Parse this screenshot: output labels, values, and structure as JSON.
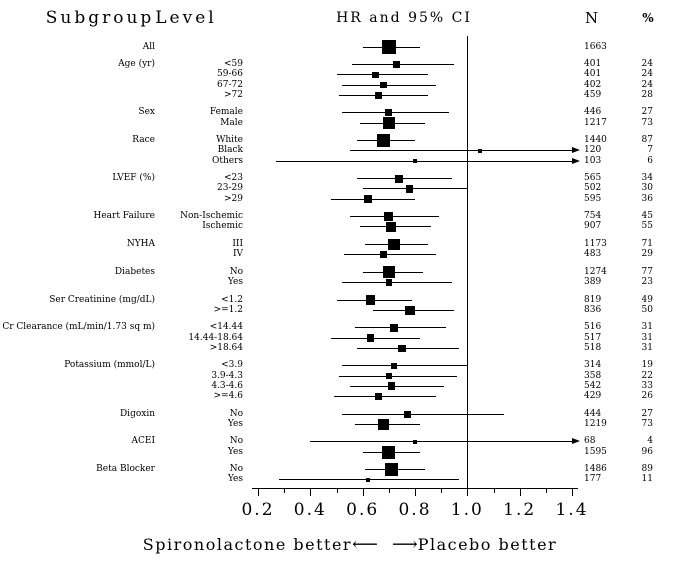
{
  "header": {
    "subgroup": "Subgroup",
    "level": "Level",
    "hr_ci": "HR and 95% CI",
    "n": "N",
    "pct": "%"
  },
  "footer": {
    "left_label": "Spironolactone better",
    "left_arrow": "⟵",
    "right_arrow": "⟶",
    "right_label": "Placebo better"
  },
  "chart_data": {
    "type": "forest",
    "title": "HR and 95% CI",
    "xlabel_left": "Spironolactone better",
    "xlabel_right": "Placebo better",
    "axis": {
      "min": 0.2,
      "max": 1.4,
      "ticks": [
        "0.2",
        "0.4",
        "0.6",
        "0.8",
        "1.0",
        "1.2",
        "1.4"
      ],
      "minor_step": 0.1,
      "ref_line": 1.0
    },
    "groups": [
      {
        "subgroup": "All",
        "rows": [
          {
            "level": "",
            "hr": 0.7,
            "lo": 0.6,
            "hi": 0.82,
            "n": 1663,
            "pct": ""
          }
        ]
      },
      {
        "subgroup": "Age (yr)",
        "rows": [
          {
            "level": "<59",
            "hr": 0.73,
            "lo": 0.56,
            "hi": 0.95,
            "n": 401,
            "pct": 24
          },
          {
            "level": "59-66",
            "hr": 0.65,
            "lo": 0.5,
            "hi": 0.85,
            "n": 401,
            "pct": 24
          },
          {
            "level": "67-72",
            "hr": 0.68,
            "lo": 0.52,
            "hi": 0.88,
            "n": 402,
            "pct": 24
          },
          {
            "level": ">72",
            "hr": 0.66,
            "lo": 0.51,
            "hi": 0.85,
            "n": 459,
            "pct": 28
          }
        ]
      },
      {
        "subgroup": "Sex",
        "rows": [
          {
            "level": "Female",
            "hr": 0.7,
            "lo": 0.52,
            "hi": 0.93,
            "n": 446,
            "pct": 27
          },
          {
            "level": "Male",
            "hr": 0.7,
            "lo": 0.59,
            "hi": 0.84,
            "n": 1217,
            "pct": 73
          }
        ]
      },
      {
        "subgroup": "Race",
        "rows": [
          {
            "level": "White",
            "hr": 0.68,
            "lo": 0.58,
            "hi": 0.8,
            "n": 1440,
            "pct": 87
          },
          {
            "level": "Black",
            "hr": 1.05,
            "lo": 0.55,
            "hi": 1.42,
            "arrow": true,
            "n": 120,
            "pct": 7
          },
          {
            "level": "Others",
            "hr": 0.8,
            "lo": 0.27,
            "hi": 1.42,
            "arrow": true,
            "n": 103,
            "pct": 6
          }
        ]
      },
      {
        "subgroup": "LVEF (%)",
        "rows": [
          {
            "level": "<23",
            "hr": 0.74,
            "lo": 0.58,
            "hi": 0.94,
            "n": 565,
            "pct": 34
          },
          {
            "level": "23-29",
            "hr": 0.78,
            "lo": 0.6,
            "hi": 1.0,
            "n": 502,
            "pct": 30
          },
          {
            "level": ">29",
            "hr": 0.62,
            "lo": 0.48,
            "hi": 0.8,
            "n": 595,
            "pct": 36
          }
        ]
      },
      {
        "subgroup": "Heart Failure",
        "rows": [
          {
            "level": "Non-Ischemic",
            "hr": 0.7,
            "lo": 0.55,
            "hi": 0.89,
            "n": 754,
            "pct": 45
          },
          {
            "level": "Ischemic",
            "hr": 0.71,
            "lo": 0.59,
            "hi": 0.86,
            "n": 907,
            "pct": 55
          }
        ]
      },
      {
        "subgroup": "NYHA",
        "rows": [
          {
            "level": "III",
            "hr": 0.72,
            "lo": 0.61,
            "hi": 0.85,
            "n": 1173,
            "pct": 71
          },
          {
            "level": "IV",
            "hr": 0.68,
            "lo": 0.53,
            "hi": 0.88,
            "n": 483,
            "pct": 29
          }
        ]
      },
      {
        "subgroup": "Diabetes",
        "rows": [
          {
            "level": "No",
            "hr": 0.7,
            "lo": 0.6,
            "hi": 0.83,
            "n": 1274,
            "pct": 77
          },
          {
            "level": "Yes",
            "hr": 0.7,
            "lo": 0.52,
            "hi": 0.94,
            "n": 389,
            "pct": 23
          }
        ]
      },
      {
        "subgroup": "Ser Creatinine (mg/dL)",
        "rows": [
          {
            "level": "<1.2",
            "hr": 0.63,
            "lo": 0.5,
            "hi": 0.79,
            "n": 819,
            "pct": 49
          },
          {
            "level": ">=1.2",
            "hr": 0.78,
            "lo": 0.64,
            "hi": 0.95,
            "n": 836,
            "pct": 50
          }
        ]
      },
      {
        "subgroup": "Cr Clearance (mL/min/1.73 sq m)",
        "rows": [
          {
            "level": "<14.44",
            "hr": 0.72,
            "lo": 0.57,
            "hi": 0.92,
            "n": 516,
            "pct": 31
          },
          {
            "level": "14.44-18.64",
            "hr": 0.63,
            "lo": 0.48,
            "hi": 0.82,
            "n": 517,
            "pct": 31
          },
          {
            "level": ">18.64",
            "hr": 0.75,
            "lo": 0.58,
            "hi": 0.97,
            "n": 518,
            "pct": 31
          }
        ]
      },
      {
        "subgroup": "Potassium (mmol/L)",
        "rows": [
          {
            "level": "<3.9",
            "hr": 0.72,
            "lo": 0.52,
            "hi": 1.0,
            "n": 314,
            "pct": 19
          },
          {
            "level": "3.9-4.3",
            "hr": 0.7,
            "lo": 0.51,
            "hi": 0.96,
            "n": 358,
            "pct": 22
          },
          {
            "level": "4.3-4.6",
            "hr": 0.71,
            "lo": 0.55,
            "hi": 0.91,
            "n": 542,
            "pct": 33
          },
          {
            "level": ">=4.6",
            "hr": 0.66,
            "lo": 0.49,
            "hi": 0.88,
            "n": 429,
            "pct": 26
          }
        ]
      },
      {
        "subgroup": "Digoxin",
        "rows": [
          {
            "level": "No",
            "hr": 0.77,
            "lo": 0.52,
            "hi": 1.14,
            "n": 444,
            "pct": 27
          },
          {
            "level": "Yes",
            "hr": 0.68,
            "lo": 0.57,
            "hi": 0.82,
            "n": 1219,
            "pct": 73
          }
        ]
      },
      {
        "subgroup": "ACEI",
        "rows": [
          {
            "level": "No",
            "hr": 0.8,
            "lo": 0.4,
            "hi": 1.42,
            "arrow": true,
            "n": 68,
            "pct": 4
          },
          {
            "level": "Yes",
            "hr": 0.7,
            "lo": 0.6,
            "hi": 0.82,
            "n": 1595,
            "pct": 96
          }
        ]
      },
      {
        "subgroup": "Beta Blocker",
        "rows": [
          {
            "level": "No",
            "hr": 0.71,
            "lo": 0.61,
            "hi": 0.84,
            "n": 1486,
            "pct": 89
          },
          {
            "level": "Yes",
            "hr": 0.62,
            "lo": 0.28,
            "hi": 0.97,
            "n": 177,
            "pct": 11
          }
        ]
      }
    ]
  }
}
